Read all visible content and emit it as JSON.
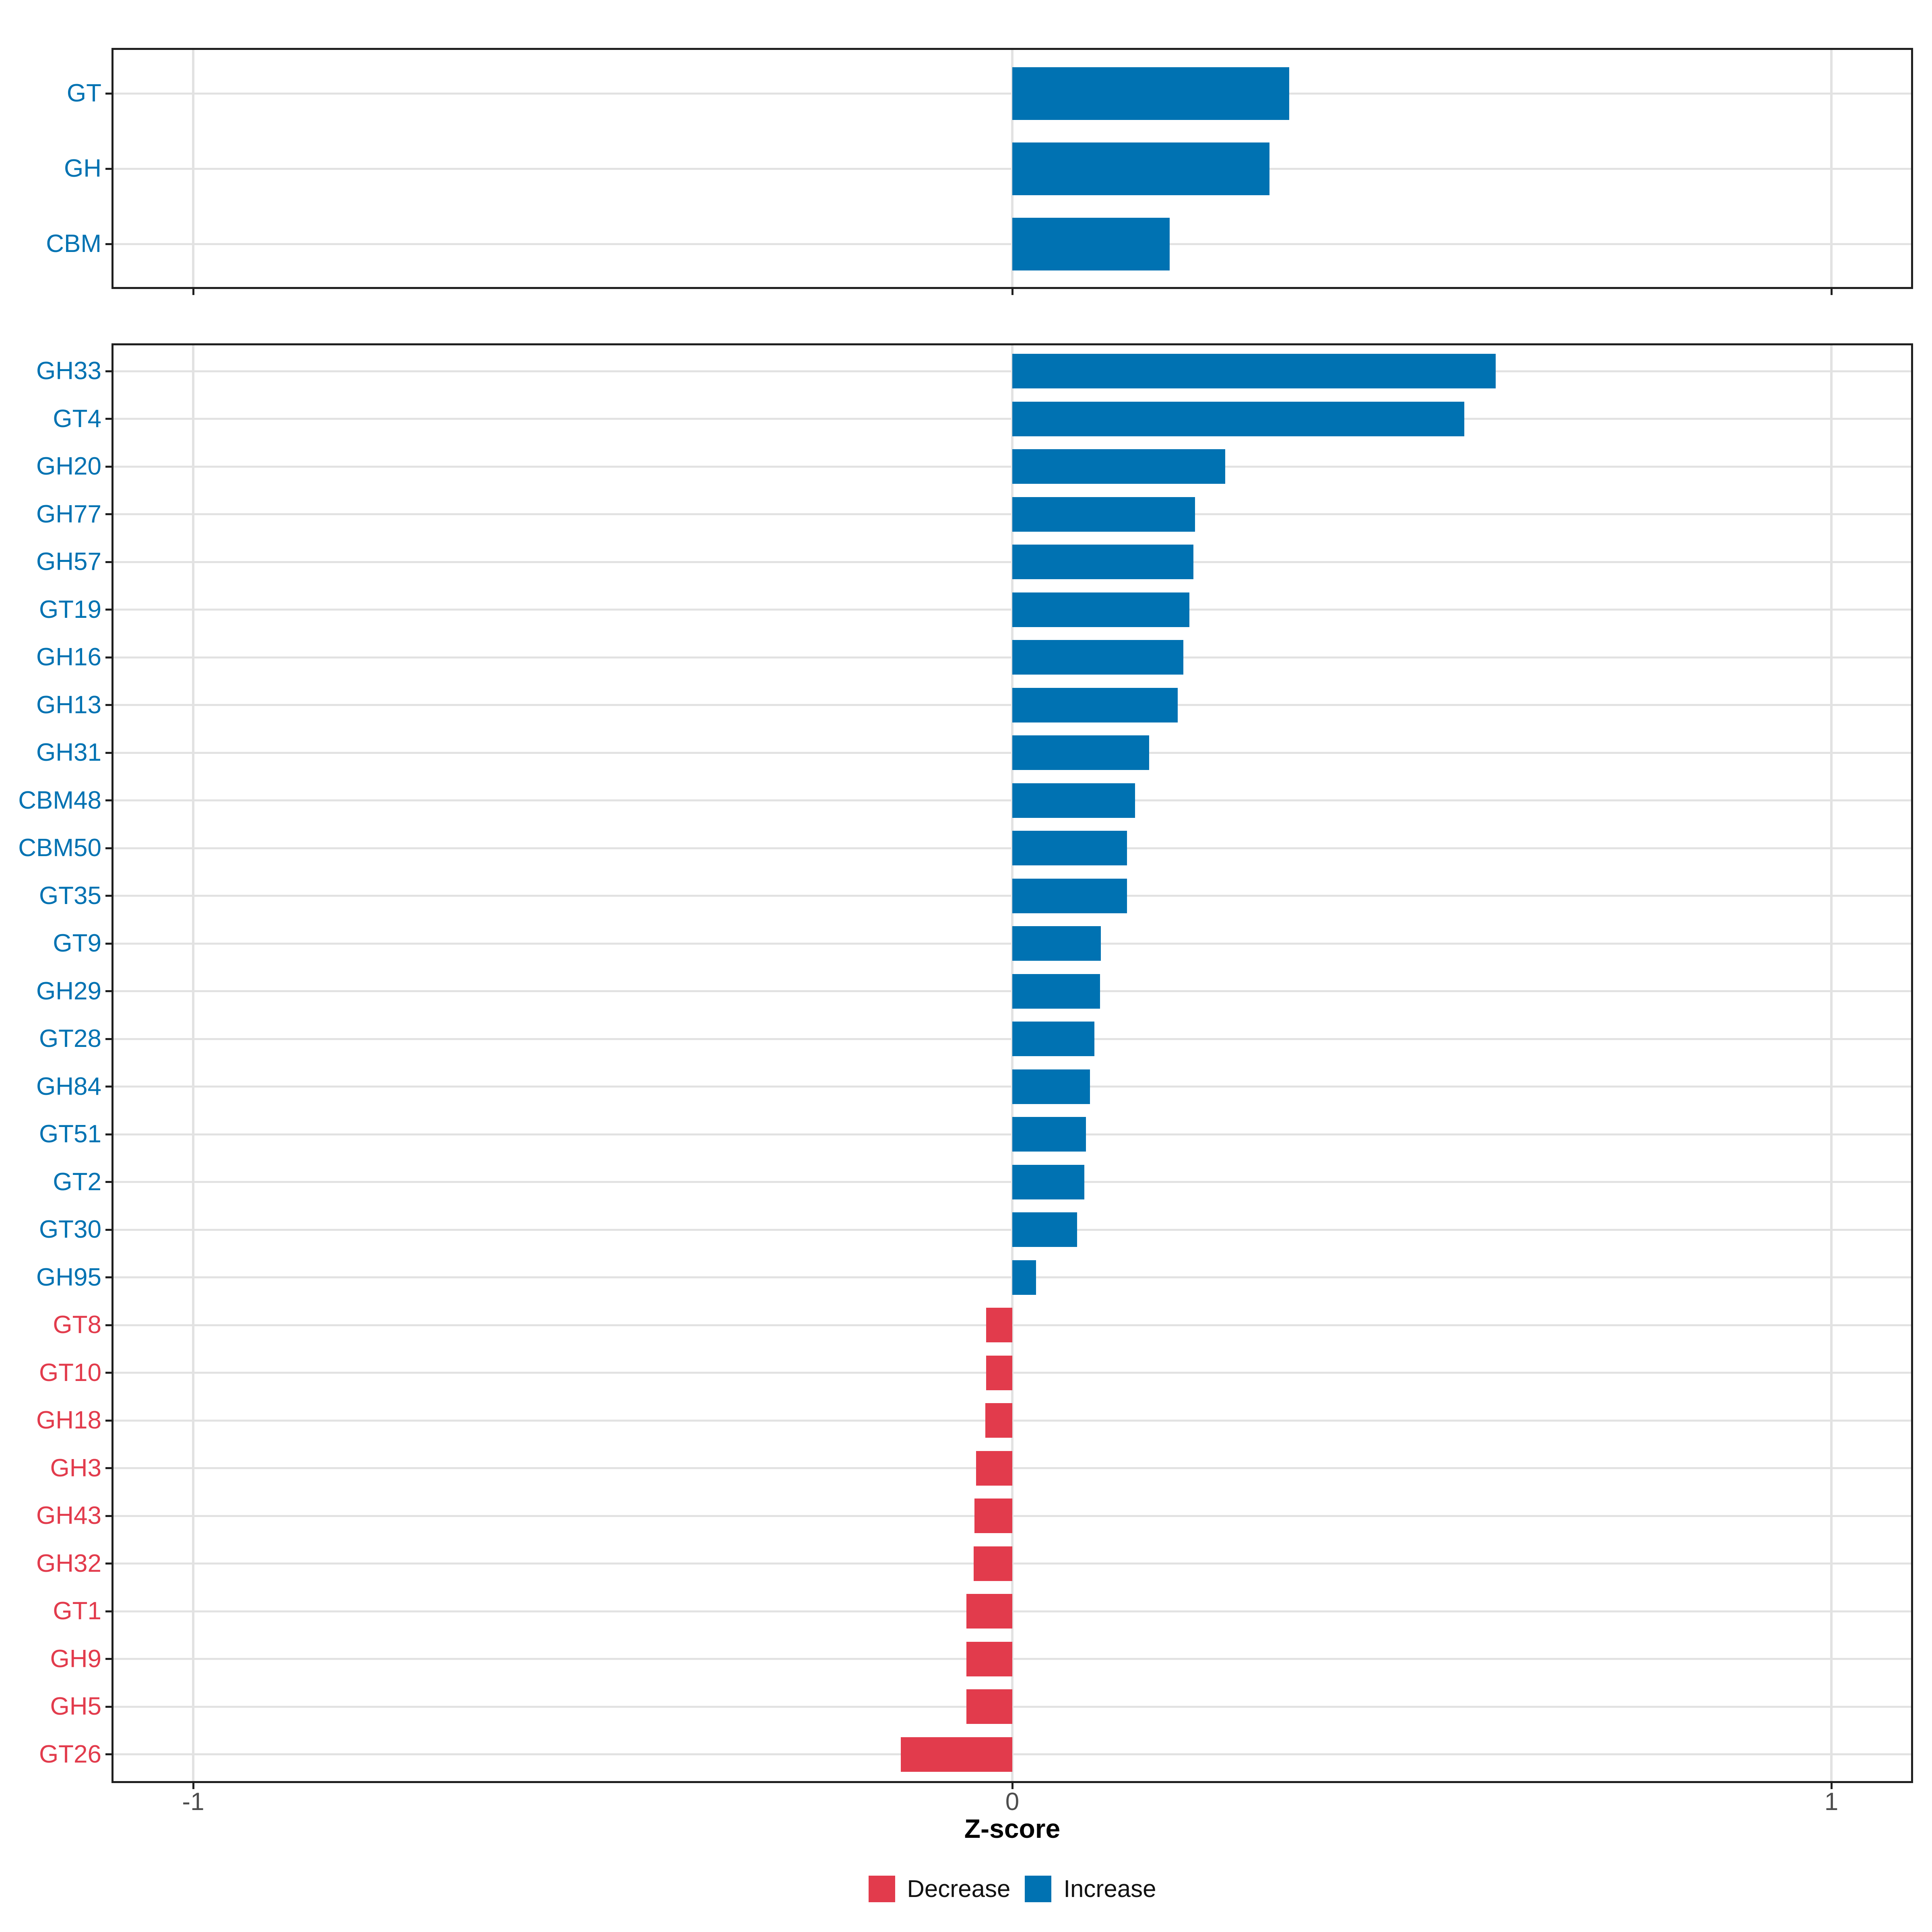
{
  "axis": {
    "xlabel": "Z-score",
    "xlim": [
      -1.1,
      1.1
    ],
    "ticks": [
      {
        "value": -1,
        "label": "-1"
      },
      {
        "value": 0,
        "label": "0"
      },
      {
        "value": 1,
        "label": "1"
      }
    ]
  },
  "legend": {
    "items": [
      {
        "label": "Decrease",
        "direction": "decrease",
        "color": "#e23b4c"
      },
      {
        "label": "Increase",
        "direction": "increase",
        "color": "#0072b2"
      }
    ],
    "position": "bottom"
  },
  "colors": {
    "increase": "#0072b2",
    "decrease": "#e23b4c",
    "gridline": "#e2e2e2",
    "panel_border": "#1f1f1f",
    "tick_label": "#4d4d4d"
  },
  "chart_data": [
    {
      "type": "bar",
      "orientation": "horizontal",
      "panel": "cazyme-classes",
      "title": "",
      "xlabel": "Z-score",
      "xlim": [
        -1.1,
        1.1
      ],
      "x_ticks": [
        -1,
        0,
        1
      ],
      "grid": "major-x and per-category horizontal lines",
      "legend_position": "bottom",
      "categories": [
        "GT",
        "GH",
        "CBM"
      ],
      "values": [
        0.338,
        0.314,
        0.192
      ]
    },
    {
      "type": "bar",
      "orientation": "horizontal",
      "panel": "cazyme-families",
      "title": "",
      "xlabel": "Z-score",
      "xlim": [
        -1.1,
        1.1
      ],
      "x_ticks": [
        -1,
        0,
        1
      ],
      "grid": "major-x and per-category horizontal lines",
      "legend_position": "bottom",
      "categories": [
        "GH33",
        "GT4",
        "GH20",
        "GH77",
        "GH57",
        "GT19",
        "GH16",
        "GH13",
        "GH31",
        "CBM48",
        "CBM50",
        "GT35",
        "GT9",
        "GH29",
        "GT28",
        "GH84",
        "GT51",
        "GT2",
        "GT30",
        "GH95",
        "GT8",
        "GT10",
        "GH18",
        "GH3",
        "GH43",
        "GH32",
        "GT1",
        "GH9",
        "GH5",
        "GT26"
      ],
      "values": [
        0.59,
        0.552,
        0.26,
        0.223,
        0.221,
        0.216,
        0.209,
        0.202,
        0.167,
        0.15,
        0.14,
        0.14,
        0.108,
        0.107,
        0.1,
        0.095,
        0.09,
        0.088,
        0.079,
        0.029,
        -0.032,
        -0.032,
        -0.033,
        -0.044,
        -0.046,
        -0.047,
        -0.056,
        -0.056,
        -0.056,
        -0.136
      ]
    }
  ]
}
